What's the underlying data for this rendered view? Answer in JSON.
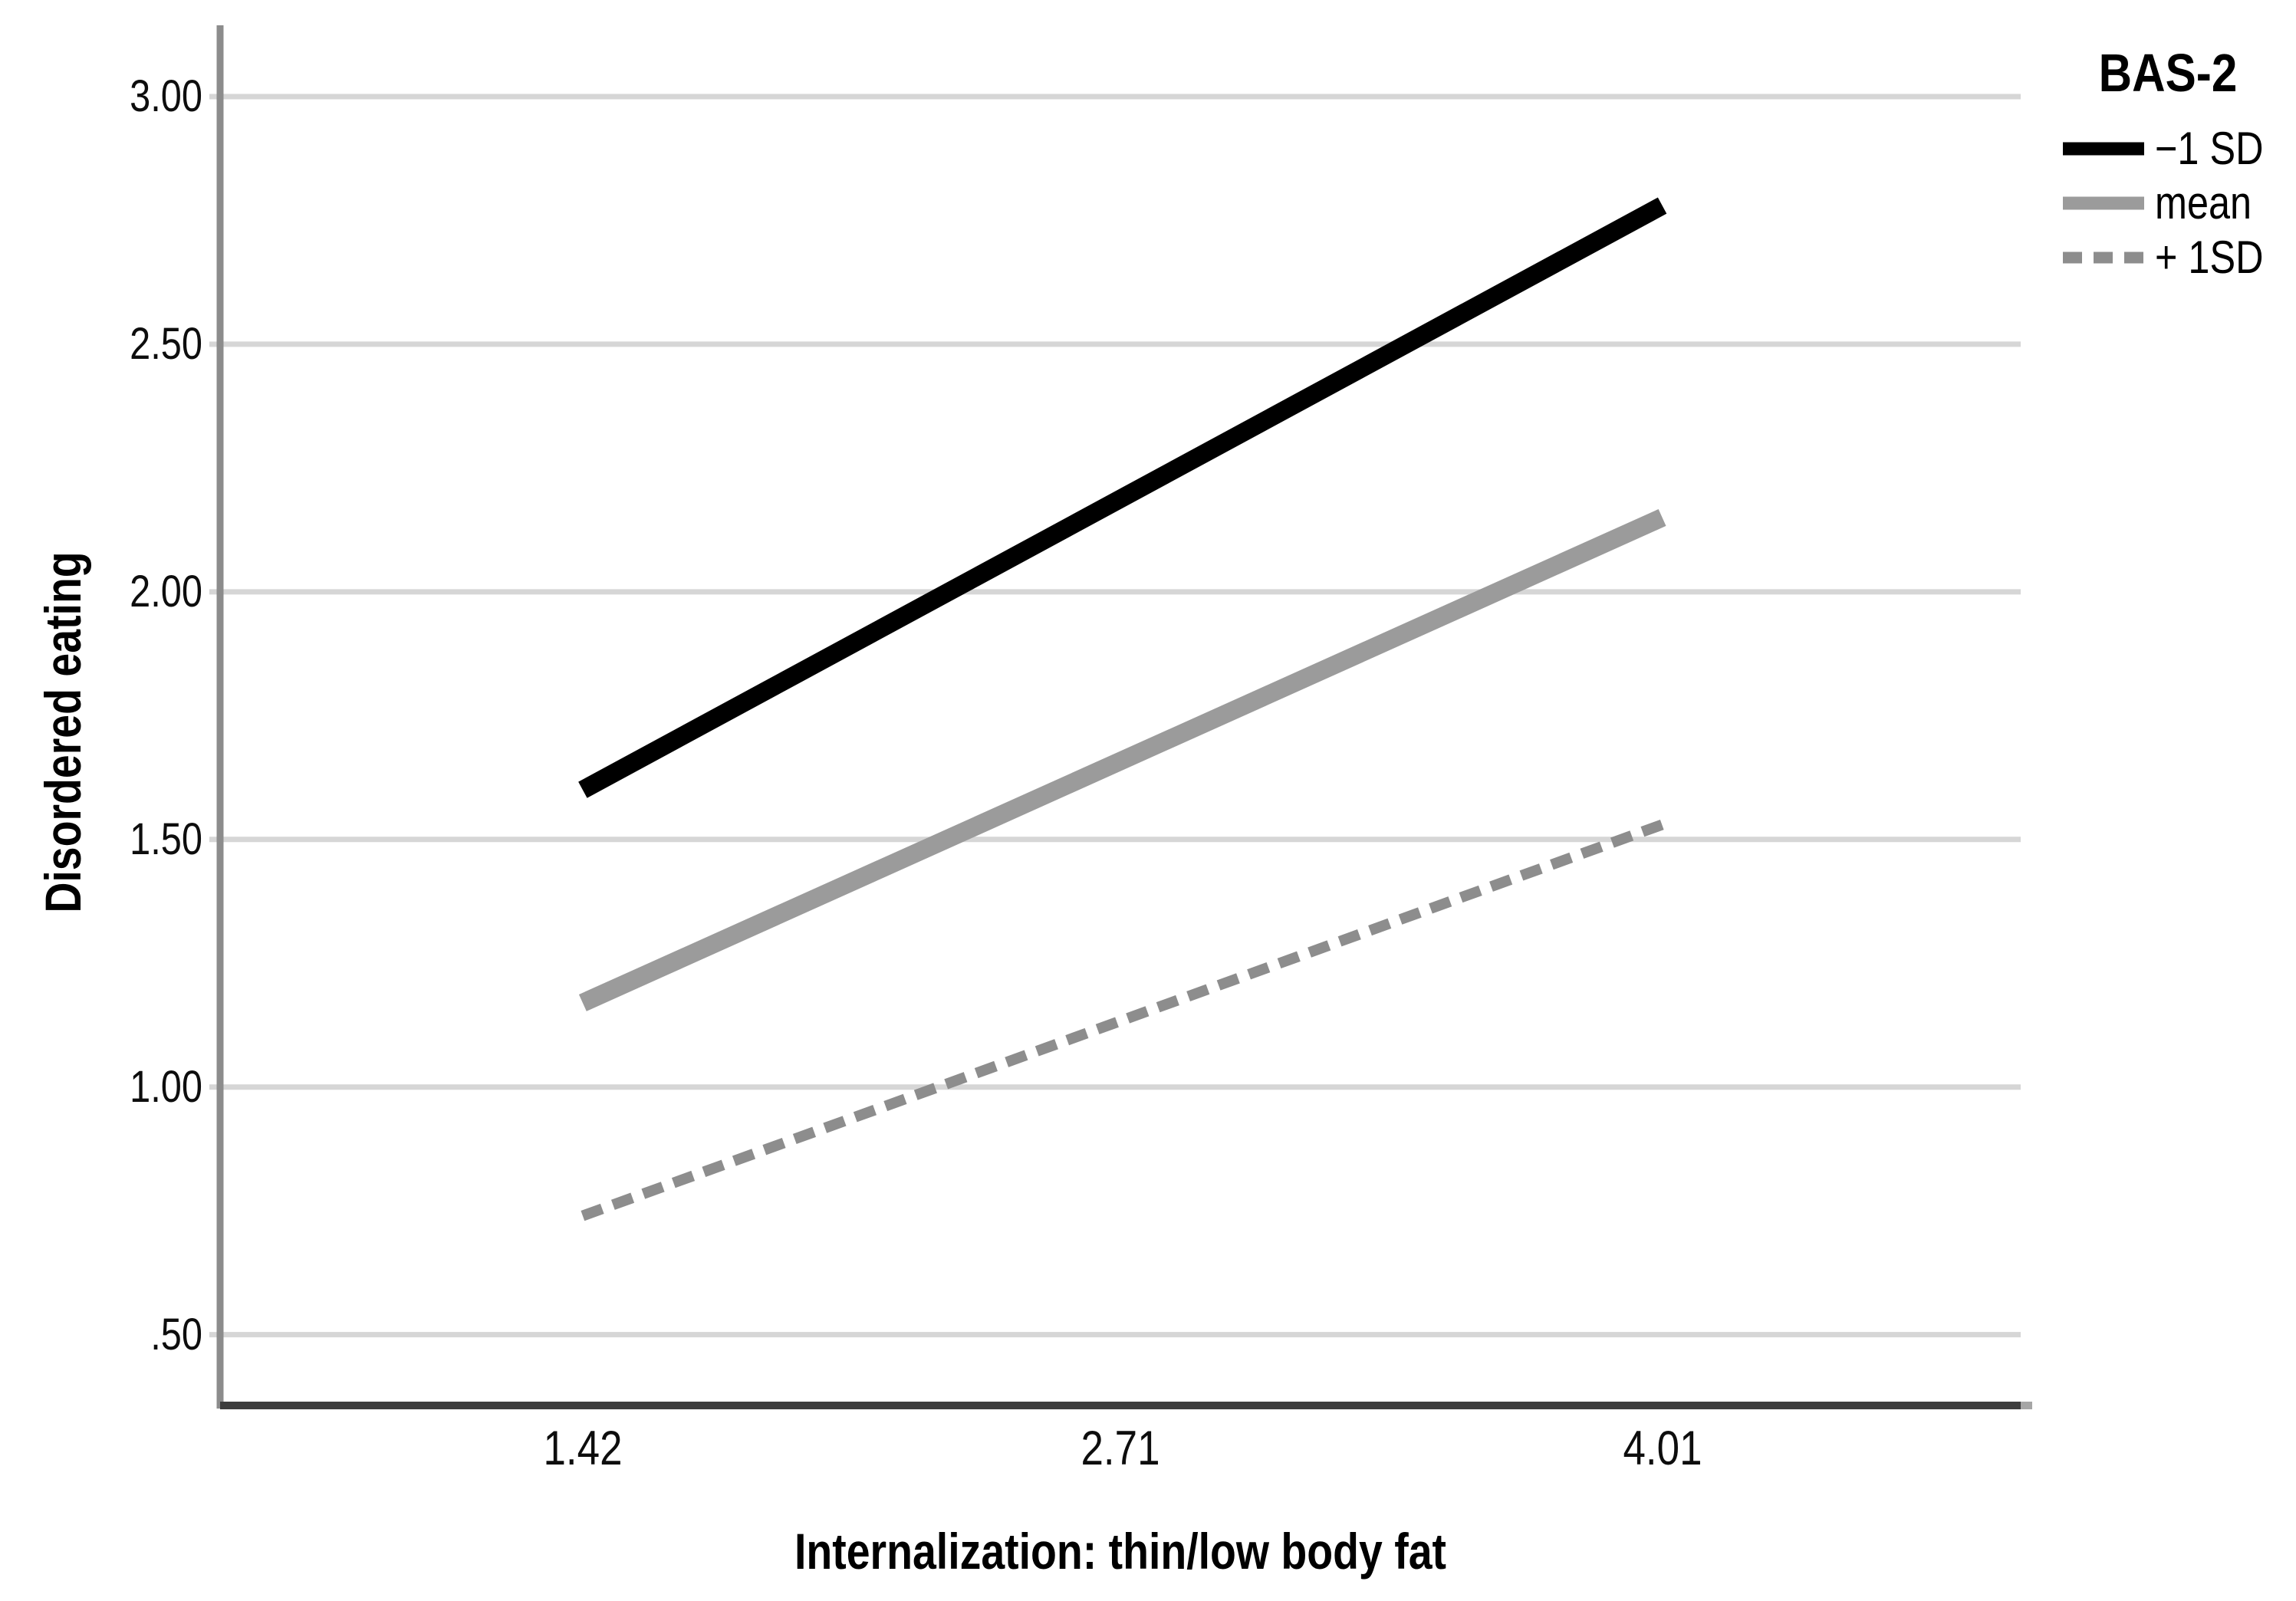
{
  "chart_data": {
    "type": "line",
    "title": "",
    "xlabel": "Internalization: thin/low body fat",
    "ylabel": "Disordered eating",
    "x_ticks": [
      1.42,
      2.71,
      4.01
    ],
    "x_tick_labels": [
      "1.42",
      "2.71",
      "4.01"
    ],
    "y_ticks": [
      0.5,
      1.0,
      1.5,
      2.0,
      2.5,
      3.0
    ],
    "y_tick_labels": [
      ".50",
      "1.00",
      "1.50",
      "2.00",
      "2.50",
      "3.00"
    ],
    "xlim": [
      0.55,
      4.87
    ],
    "ylim": [
      0.357,
      3.144
    ],
    "grid": "horizontal",
    "legend": {
      "title": "BAS-2",
      "position": "top-right",
      "items": [
        {
          "label": "−1 SD",
          "style": "solid",
          "color": "#000000"
        },
        {
          "label": "mean",
          "style": "solid",
          "color": "#9b9b9b"
        },
        {
          "label": "+ 1SD",
          "style": "dashed",
          "color": "#8d8d8d"
        }
      ]
    },
    "series": [
      {
        "name": "−1 SD",
        "style": "solid",
        "color": "#000000",
        "stroke_width": 24,
        "x": [
          1.42,
          4.01
        ],
        "y": [
          1.6,
          2.78
        ]
      },
      {
        "name": "mean",
        "style": "solid",
        "color": "#9b9b9b",
        "stroke_width": 24,
        "x": [
          1.42,
          4.01
        ],
        "y": [
          1.17,
          2.15
        ]
      },
      {
        "name": "+ 1SD",
        "style": "dashed",
        "color": "#8d8d8d",
        "stroke_width": 14,
        "x": [
          1.42,
          4.01
        ],
        "y": [
          0.74,
          1.53
        ]
      }
    ],
    "colors": {
      "grid": "#d6d6d6",
      "y_axis": "#8c8c8c",
      "x_axis": "#3d3d3d",
      "axis_end_cap": "#a6a6a6",
      "text": "#000000",
      "background": "#ffffff"
    }
  }
}
